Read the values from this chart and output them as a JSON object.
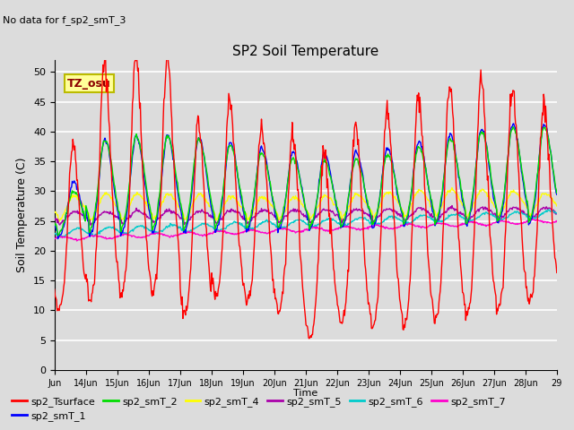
{
  "title": "SP2 Soil Temperature",
  "no_data_text": "No data for f_sp2_smT_3",
  "xlabel": "Time",
  "ylabel": "Soil Temperature (C)",
  "tz_label": "TZ_osu",
  "ylim": [
    0,
    52
  ],
  "yticks": [
    0,
    5,
    10,
    15,
    20,
    25,
    30,
    35,
    40,
    45,
    50
  ],
  "x_tick_labels": [
    "Jun",
    "14Jun",
    "15Jun",
    "16Jun",
    "17Jun",
    "18Jun",
    "19Jun",
    "20Jun",
    "21Jun",
    "22Jun",
    "23Jun",
    "24Jun",
    "25Jun",
    "26Jun",
    "27Jun",
    "28Jun",
    "29"
  ],
  "colors": {
    "sp2_Tsurface": "#FF0000",
    "sp2_smT_1": "#0000FF",
    "sp2_smT_2": "#00DD00",
    "sp2_smT_4": "#FFFF00",
    "sp2_smT_5": "#AA00AA",
    "sp2_smT_6": "#00CCCC",
    "sp2_smT_7": "#FF00CC"
  },
  "background_color": "#DCDCDC",
  "grid_color": "#FFFFFF"
}
